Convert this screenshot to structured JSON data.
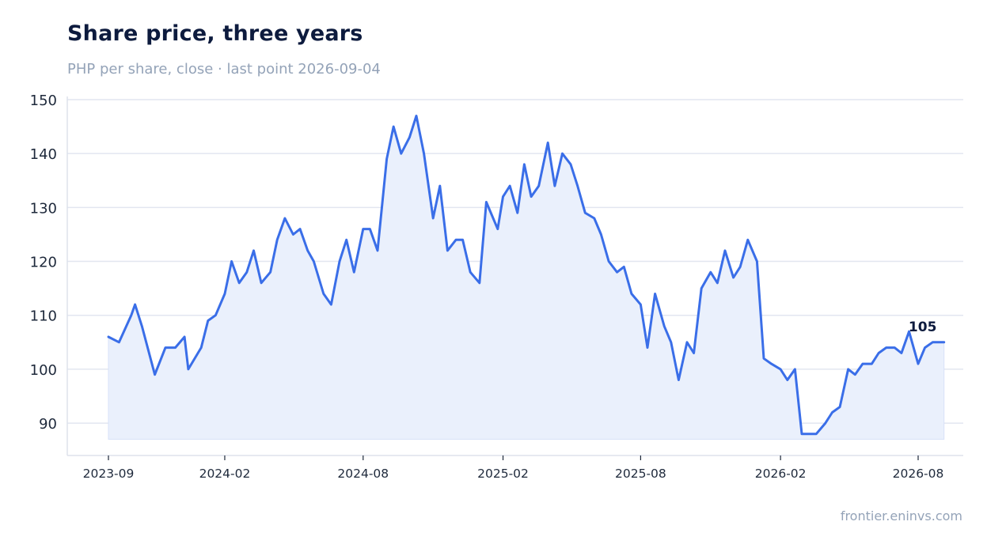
{
  "header": {
    "title": "Share price, three years",
    "subtitle": "PHP per share, close · last point 2026-09-04"
  },
  "footer": {
    "source": "frontier.eninvs.com"
  },
  "colors": {
    "line": "#3a6ee8",
    "area": "#eaf0fc",
    "grid": "#e2e6f0",
    "axis": "#dde2ec"
  },
  "chart_data": {
    "type": "area",
    "title": "Share price, three years",
    "subtitle": "PHP per share, close · last point 2026-09-04",
    "xlabel": "",
    "ylabel": "",
    "ylim": [
      84,
      150
    ],
    "yticks": [
      90,
      100,
      110,
      120,
      130,
      140,
      150
    ],
    "xticks": [
      "2023-09",
      "2024-02",
      "2024-08",
      "2025-02",
      "2025-08",
      "2026-02",
      "2026-08"
    ],
    "grid": true,
    "end_label": "105",
    "x": [
      "2023-09-01",
      "2023-09-15",
      "2023-10-01",
      "2023-10-06",
      "2023-10-15",
      "2023-11-01",
      "2023-11-15",
      "2023-11-28",
      "2023-12-10",
      "2023-12-15",
      "2024-01-01",
      "2024-01-10",
      "2024-01-20",
      "2024-02-01",
      "2024-02-10",
      "2024-02-20",
      "2024-03-01",
      "2024-03-10",
      "2024-03-20",
      "2024-04-01",
      "2024-04-10",
      "2024-04-20",
      "2024-05-01",
      "2024-05-10",
      "2024-05-20",
      "2024-05-28",
      "2024-06-10",
      "2024-06-20",
      "2024-07-01",
      "2024-07-10",
      "2024-07-20",
      "2024-08-01",
      "2024-08-10",
      "2024-08-20",
      "2024-09-01",
      "2024-09-10",
      "2024-09-20",
      "2024-10-01",
      "2024-10-10",
      "2024-10-20",
      "2024-11-01",
      "2024-11-10",
      "2024-11-20",
      "2024-12-01",
      "2024-12-10",
      "2024-12-20",
      "2025-01-01",
      "2025-01-10",
      "2025-01-25",
      "2025-02-01",
      "2025-02-10",
      "2025-02-20",
      "2025-03-01",
      "2025-03-10",
      "2025-03-20",
      "2025-04-01",
      "2025-04-10",
      "2025-04-20",
      "2025-05-01",
      "2025-05-10",
      "2025-05-20",
      "2025-06-01",
      "2025-06-10",
      "2025-06-20",
      "2025-07-01",
      "2025-07-10",
      "2025-07-20",
      "2025-08-01",
      "2025-08-10",
      "2025-08-20",
      "2025-09-01",
      "2025-09-10",
      "2025-09-20",
      "2025-10-01",
      "2025-10-10",
      "2025-10-20",
      "2025-11-01",
      "2025-11-10",
      "2025-11-20",
      "2025-12-01",
      "2025-12-10",
      "2025-12-20",
      "2026-01-01",
      "2026-01-10",
      "2026-01-20",
      "2026-02-01",
      "2026-02-10",
      "2026-02-20",
      "2026-03-01",
      "2026-03-10",
      "2026-03-20",
      "2026-04-01",
      "2026-04-10",
      "2026-04-20",
      "2026-05-01",
      "2026-05-10",
      "2026-05-20",
      "2026-06-01",
      "2026-06-10",
      "2026-06-20",
      "2026-07-01",
      "2026-07-10",
      "2026-07-20",
      "2026-08-01",
      "2026-08-10",
      "2026-08-20",
      "2026-09-04"
    ],
    "series": [
      {
        "values": [
          106,
          105,
          110,
          112,
          108,
          99,
          104,
          104,
          106,
          100,
          104,
          109,
          110,
          114,
          120,
          116,
          118,
          122,
          116,
          118,
          124,
          128,
          125,
          126,
          122,
          120,
          114,
          112,
          120,
          124,
          118,
          126,
          126,
          122,
          139,
          145,
          140,
          143,
          147,
          140,
          128,
          134,
          122,
          124,
          124,
          118,
          116,
          131,
          126,
          132,
          134,
          129,
          138,
          132,
          134,
          142,
          134,
          140,
          138,
          134,
          129,
          128,
          125,
          120,
          118,
          119,
          114,
          112,
          104,
          114,
          108,
          105,
          98,
          105,
          103,
          115,
          118,
          116,
          122,
          117,
          119,
          124,
          120,
          102,
          101,
          100,
          98,
          100,
          88,
          88,
          88,
          90,
          92,
          93,
          100,
          99,
          101,
          101,
          103,
          104,
          104,
          103,
          107,
          101,
          104,
          105,
          105
        ]
      }
    ]
  }
}
